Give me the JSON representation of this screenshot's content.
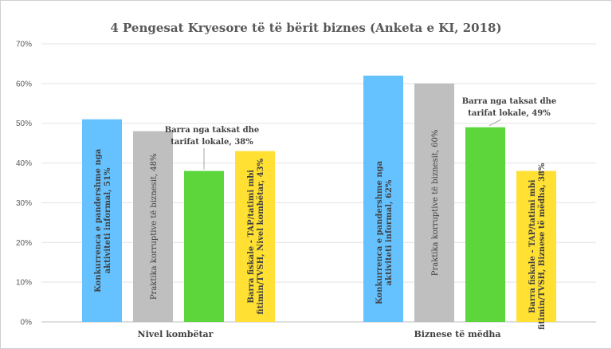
{
  "chart_data": {
    "type": "bar",
    "title": "4 Pengesat Kryesore të të bërit biznes (Anketa e KI, 2018)",
    "categories": [
      "Nivel kombëtar",
      "Biznese të mëdha"
    ],
    "ylim": [
      0,
      70
    ],
    "yticks": [
      "0%",
      "10%",
      "20%",
      "30%",
      "40%",
      "50%",
      "60%",
      "70%"
    ],
    "grid": true,
    "series": [
      {
        "color": "#66c2ff",
        "values": [
          51,
          62
        ],
        "labels": [
          [
            "Konkurrenca e pandershme nga",
            "aktiviteti informal, 51%"
          ],
          [
            "Konkurrenca e pandershme nga",
            "aktiviteti informal, 62%"
          ]
        ]
      },
      {
        "color": "#bfbfbf",
        "values": [
          48,
          60
        ],
        "labels": [
          [
            "Praktika korruptive të biznesit, 48%"
          ],
          [
            "Praktika korruptive të biznesit, 60%"
          ]
        ]
      },
      {
        "color": "#5cd63a",
        "values": [
          38,
          49
        ],
        "labels": [
          [
            "Barra nga taksat dhe",
            "tarifat lokale, 38%"
          ],
          [
            "Barra nga taksat dhe",
            "tarifat lokale, 49%"
          ]
        ]
      },
      {
        "color": "#ffe033",
        "values": [
          43,
          38
        ],
        "labels": [
          [
            "Barra fiskale - TAP/tatimi mbi",
            "fitimin/TVSH, Nivel kombëtar, 43%"
          ],
          [
            "Barra fiskale - TAP/tatimi mbi",
            "fitimin/TVSH, Biznese të mëdha, 38%"
          ]
        ]
      }
    ]
  }
}
